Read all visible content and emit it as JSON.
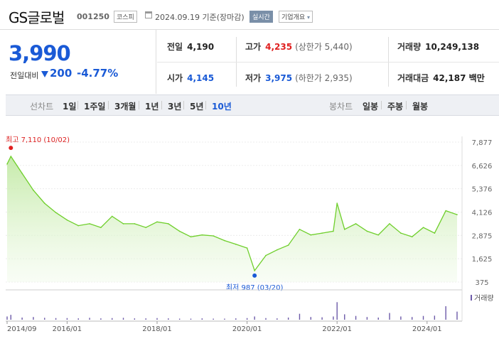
{
  "header": {
    "name": "GS글로벌",
    "code": "001250",
    "market": "코스피",
    "date": "2024.09.19 기준(장마감)",
    "live": "실시간",
    "info": "기업개요"
  },
  "summary": {
    "price": "3,990",
    "change_label": "전일대비",
    "change": "200",
    "change_pct": "-4.77%"
  },
  "stats": {
    "prev": {
      "label": "전일",
      "value": "4,190"
    },
    "open": {
      "label": "시가",
      "value": "4,145"
    },
    "high": {
      "label": "고가",
      "value": "4,235",
      "sub": "(상한가 5,440)"
    },
    "low": {
      "label": "저가",
      "value": "3,975",
      "sub": "(하한가 2,935)"
    },
    "volume": {
      "label": "거래량",
      "value": "10,249,138"
    },
    "amount": {
      "label": "거래대금",
      "value": "42,187 백만"
    }
  },
  "periods": {
    "label": "선차트",
    "items": [
      "1일",
      "1주일",
      "3개월",
      "1년",
      "3년",
      "5년",
      "10년"
    ],
    "active": "10년"
  },
  "candle": {
    "label": "봉차트",
    "items": [
      "일봉",
      "주봉",
      "월봉"
    ]
  },
  "colors": {
    "price_up": "#e02020",
    "price_down": "#1a5ad6",
    "line": "#6fcf2c",
    "volume": "#6c5aa8"
  },
  "chart_data": {
    "type": "area",
    "y_ticks": [
      "7,877",
      "6,626",
      "5,376",
      "4,126",
      "2,875",
      "1,625",
      "375"
    ],
    "ylim": [
      375,
      7877
    ],
    "x_ticks": [
      "2014/09",
      "2016/01",
      "2018/01",
      "2020/01",
      "2022/01",
      "2024/01"
    ],
    "high_label": "최고 7,110 (10/02)",
    "low_label": "최저 987 (03/20)",
    "volume_label": "거래량",
    "series": [
      {
        "x": [
          "2014/09",
          "2014/10",
          "2015/01",
          "2015/04",
          "2015/07",
          "2015/10",
          "2016/01",
          "2016/04",
          "2016/07",
          "2016/10",
          "2017/01",
          "2017/04",
          "2017/07",
          "2017/10",
          "2018/01",
          "2018/04",
          "2018/07",
          "2018/10",
          "2019/01",
          "2019/04",
          "2019/07",
          "2019/10",
          "2020/01",
          "2020/03",
          "2020/06",
          "2020/09",
          "2020/12",
          "2021/03",
          "2021/06",
          "2021/09",
          "2021/12",
          "2022/01",
          "2022/03",
          "2022/06",
          "2022/09",
          "2022/12",
          "2023/03",
          "2023/06",
          "2023/09",
          "2023/12",
          "2024/03",
          "2024/06",
          "2024/09"
        ],
        "values": [
          6700,
          7110,
          6200,
          5300,
          4600,
          4100,
          3700,
          3400,
          3500,
          3300,
          3900,
          3500,
          3500,
          3300,
          3600,
          3500,
          3100,
          2800,
          2900,
          2850,
          2600,
          2400,
          2200,
          987,
          1800,
          2100,
          2350,
          3200,
          2900,
          3000,
          3100,
          4600,
          3200,
          3500,
          3100,
          2900,
          3500,
          3000,
          2800,
          3300,
          3000,
          4200,
          3990
        ]
      }
    ],
    "volume_values": [
      0.12,
      0.18,
      0.08,
      0.1,
      0.07,
      0.06,
      0.06,
      0.05,
      0.07,
      0.05,
      0.06,
      0.07,
      0.05,
      0.05,
      0.06,
      0.05,
      0.04,
      0.04,
      0.05,
      0.04,
      0.04,
      0.05,
      0.06,
      0.12,
      0.06,
      0.05,
      0.08,
      0.22,
      0.1,
      0.09,
      0.12,
      0.65,
      0.2,
      0.14,
      0.1,
      0.08,
      0.25,
      0.12,
      0.1,
      0.14,
      0.15,
      0.5,
      0.3
    ]
  }
}
